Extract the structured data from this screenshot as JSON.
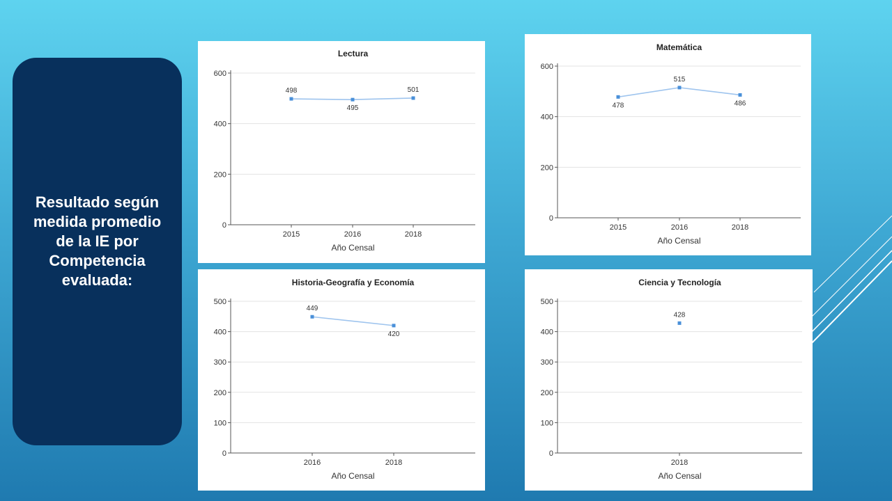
{
  "side_panel": {
    "text": "Resultado según medida promedio de la IE por Competencia evaluada:"
  },
  "colors": {
    "series": "#4a90d9",
    "line": "#9ec4ee",
    "panel": "#08305c"
  },
  "chart_data": [
    {
      "type": "line",
      "title": "Lectura",
      "xlabel": "Año Censal",
      "ylabel": "",
      "categories": [
        "2015",
        "2016",
        "2018"
      ],
      "values": [
        498,
        495,
        501
      ],
      "ylim": [
        0,
        600
      ],
      "yticks": [
        0,
        200,
        400,
        600
      ],
      "label_pos": [
        "above",
        "below",
        "above"
      ]
    },
    {
      "type": "line",
      "title": "Matemática",
      "xlabel": "Año Censal",
      "ylabel": "",
      "categories": [
        "2015",
        "2016",
        "2018"
      ],
      "values": [
        478,
        515,
        486
      ],
      "ylim": [
        0,
        600
      ],
      "yticks": [
        0,
        200,
        400,
        600
      ],
      "label_pos": [
        "below",
        "above",
        "below"
      ]
    },
    {
      "type": "line",
      "title": "Historia-Geografía y Economía",
      "xlabel": "Año Censal",
      "ylabel": "",
      "categories": [
        "2016",
        "2018"
      ],
      "values": [
        449,
        420
      ],
      "ylim": [
        0,
        500
      ],
      "yticks": [
        0,
        100,
        200,
        300,
        400,
        500
      ],
      "label_pos": [
        "above",
        "below"
      ]
    },
    {
      "type": "scatter",
      "title": "Ciencia y Tecnología",
      "xlabel": "Año Censal",
      "ylabel": "",
      "categories": [
        "2018"
      ],
      "values": [
        428
      ],
      "ylim": [
        0,
        500
      ],
      "yticks": [
        0,
        100,
        200,
        300,
        400,
        500
      ],
      "label_pos": [
        "above"
      ]
    }
  ]
}
